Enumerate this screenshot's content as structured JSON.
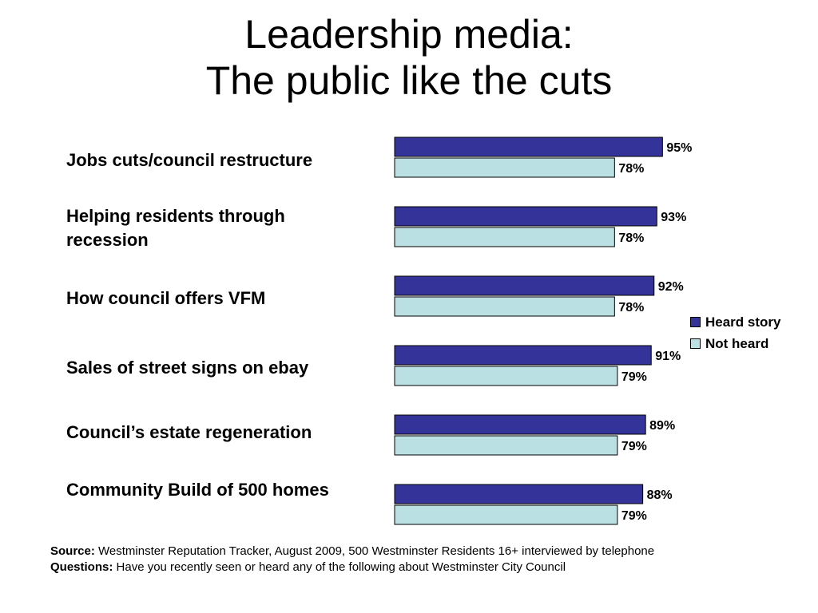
{
  "title": {
    "line1": "Leadership media:",
    "line2": "The public like the cuts"
  },
  "chart_data": {
    "type": "bar",
    "orientation": "horizontal",
    "categories": [
      "Jobs cuts/council restructure",
      "Helping residents through recession",
      "How council offers VFM",
      "Sales of street signs on ebay",
      "Council’s estate regeneration",
      "Community Build of 500 homes"
    ],
    "series": [
      {
        "name": "Heard story",
        "color": "#333399",
        "values": [
          95,
          93,
          92,
          91,
          89,
          88
        ]
      },
      {
        "name": "Not heard",
        "color": "#bbe0e3",
        "values": [
          78,
          78,
          78,
          79,
          79,
          79
        ]
      }
    ],
    "value_suffix": "%",
    "xlim": [
      0,
      100
    ],
    "grid": false,
    "legend_position": "right"
  },
  "footer": {
    "source_label": "Source:",
    "source_text": "Westminster Reputation Tracker, August 2009, 500 Westminster Residents 16+ interviewed by telephone",
    "questions_label": "Questions:",
    "questions_text": "Have you recently seen or heard any of the following about Westminster City Council"
  }
}
